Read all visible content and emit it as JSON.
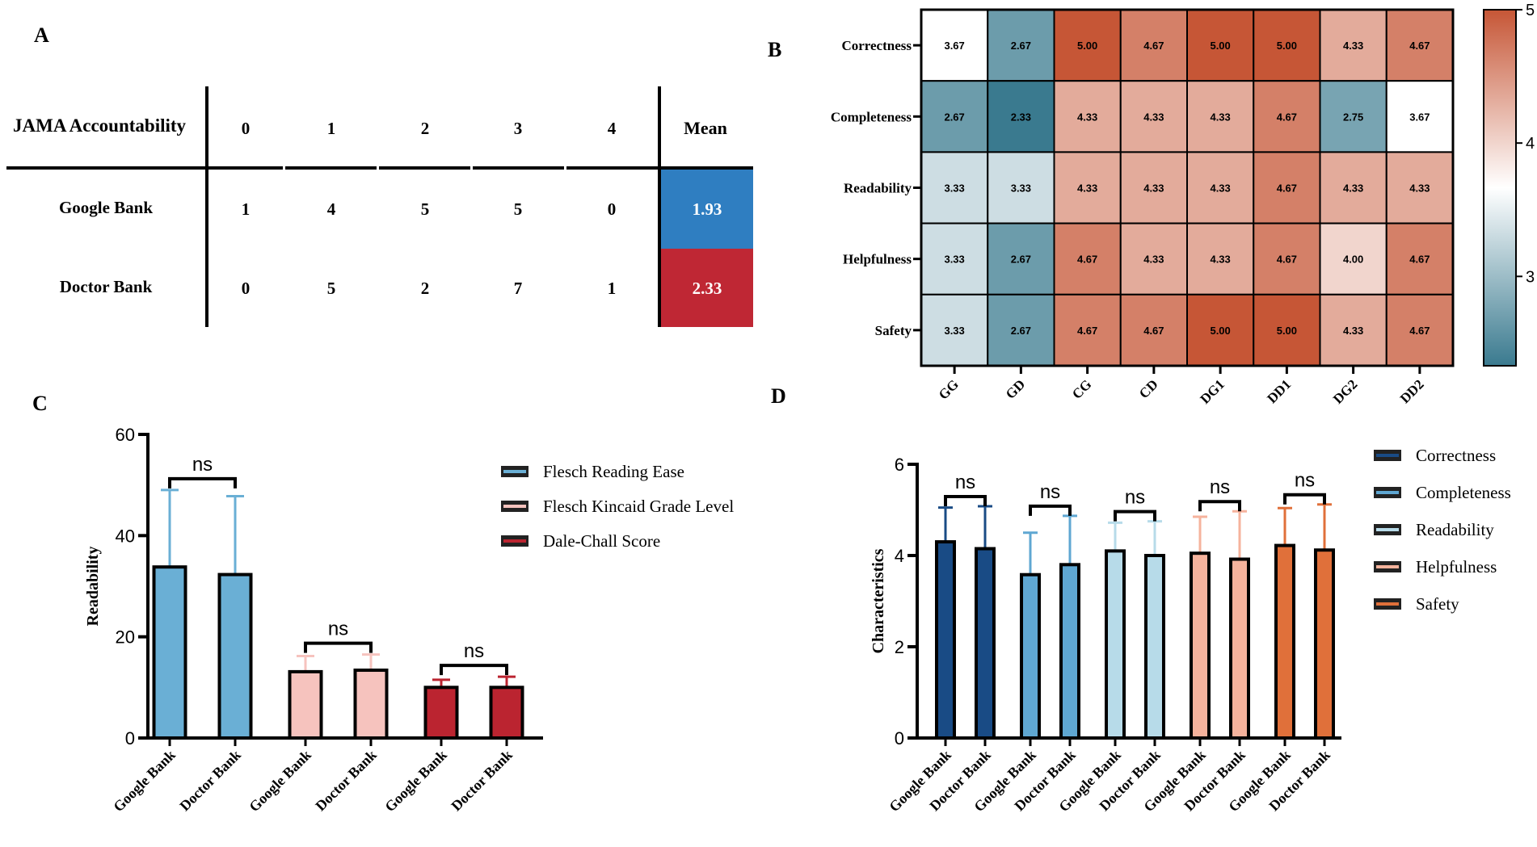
{
  "colors": {
    "google_blue": "#2f7ec1",
    "doctor_red": "#bf2734",
    "fre": "#6aafd5",
    "fk": "#f6c3be",
    "dale": "#bb2430",
    "correctness": "#194b85",
    "completeness": "#5fa7d2",
    "readability": "#b7dbe9",
    "helpfulness": "#f6b39d",
    "safety": "#e0703a"
  },
  "panel_a": {
    "label": "A",
    "header": "JAMA Accountability",
    "columns": [
      "0",
      "1",
      "2",
      "3",
      "4",
      "Mean"
    ],
    "rows": [
      {
        "name": "Google Bank",
        "counts": [
          "1",
          "4",
          "5",
          "5",
          "0"
        ],
        "mean": "1.93"
      },
      {
        "name": "Doctor Bank",
        "counts": [
          "0",
          "5",
          "2",
          "7",
          "1"
        ],
        "mean": "2.33"
      }
    ]
  },
  "chart_data": [
    {
      "panel": "B",
      "type": "heatmap",
      "rows": [
        "Correctness",
        "Completeness",
        "Readability",
        "Helpfulness",
        "Safety"
      ],
      "columns": [
        "GG",
        "GD",
        "CG",
        "CD",
        "DG1",
        "DD1",
        "DG2",
        "DD2"
      ],
      "values": [
        [
          3.67,
          2.67,
          5.0,
          4.67,
          5.0,
          5.0,
          4.33,
          4.67
        ],
        [
          2.67,
          2.33,
          4.33,
          4.33,
          4.33,
          4.67,
          2.75,
          3.67
        ],
        [
          3.33,
          3.33,
          4.33,
          4.33,
          4.33,
          4.67,
          4.33,
          4.33
        ],
        [
          3.33,
          2.67,
          4.67,
          4.33,
          4.33,
          4.67,
          4.0,
          4.67
        ],
        [
          3.33,
          2.67,
          4.67,
          4.67,
          5.0,
          5.0,
          4.33,
          4.67
        ]
      ],
      "value_labels": [
        [
          "3.67",
          "2.67",
          "5.00",
          "4.67",
          "5.00",
          "5.00",
          "4.33",
          "4.67"
        ],
        [
          "2.67",
          "2.33",
          "4.33",
          "4.33",
          "4.33",
          "4.67",
          "2.75",
          "3.67"
        ],
        [
          "3.33",
          "3.33",
          "4.33",
          "4.33",
          "4.33",
          "4.67",
          "4.33",
          "4.33"
        ],
        [
          "3.33",
          "2.67",
          "4.67",
          "4.33",
          "4.33",
          "4.67",
          "4.00",
          "4.67"
        ],
        [
          "3.33",
          "2.67",
          "4.67",
          "4.67",
          "5.00",
          "5.00",
          "4.33",
          "4.67"
        ]
      ],
      "colorbar": {
        "min": 2.33,
        "mid": 3.67,
        "max": 5.0,
        "ticks": [
          3,
          4,
          5
        ],
        "tick_labels": [
          "3",
          "4",
          "5"
        ],
        "low_color": "#3a7a8f",
        "mid_color": "#ffffff",
        "high_color": "#c65636"
      }
    },
    {
      "panel": "C",
      "type": "bar",
      "ylabel": "Readability",
      "ylim": [
        0,
        60
      ],
      "yticks": [
        0,
        20,
        40,
        60
      ],
      "ytick_labels": [
        "0",
        "20",
        "40",
        "60"
      ],
      "categories": [
        "Google Bank",
        "Doctor Bank"
      ],
      "significance": "ns",
      "series": [
        {
          "name": "Flesch Reading Ease",
          "values": [
            33.8,
            32.3
          ],
          "errors": [
            15.2,
            15.5
          ]
        },
        {
          "name": "Flesch Kincaid Grade Level",
          "values": [
            13.1,
            13.4
          ],
          "errors": [
            3.1,
            3.1
          ]
        },
        {
          "name": "Dale-Chall Score",
          "values": [
            10.0,
            10.0
          ],
          "errors": [
            1.5,
            2.1
          ]
        }
      ]
    },
    {
      "panel": "D",
      "type": "bar",
      "ylabel": "Characteristics",
      "ylim": [
        0,
        6
      ],
      "yticks": [
        0,
        2,
        4,
        6
      ],
      "ytick_labels": [
        "0",
        "2",
        "4",
        "6"
      ],
      "categories": [
        "Google Bank",
        "Doctor Bank"
      ],
      "significance": "ns",
      "series": [
        {
          "name": "Correctness",
          "values": [
            4.3,
            4.15
          ],
          "errors": [
            0.75,
            0.93
          ]
        },
        {
          "name": "Completeness",
          "values": [
            3.58,
            3.8
          ],
          "errors": [
            0.92,
            1.07
          ]
        },
        {
          "name": "Readability",
          "values": [
            4.1,
            4.0
          ],
          "errors": [
            0.62,
            0.75
          ]
        },
        {
          "name": "Helpfulness",
          "values": [
            4.05,
            3.92
          ],
          "errors": [
            0.8,
            1.05
          ]
        },
        {
          "name": "Safety",
          "values": [
            4.22,
            4.12
          ],
          "errors": [
            0.82,
            1.0
          ]
        }
      ]
    }
  ],
  "labels": {
    "b": "B",
    "c": "C",
    "d": "D"
  }
}
